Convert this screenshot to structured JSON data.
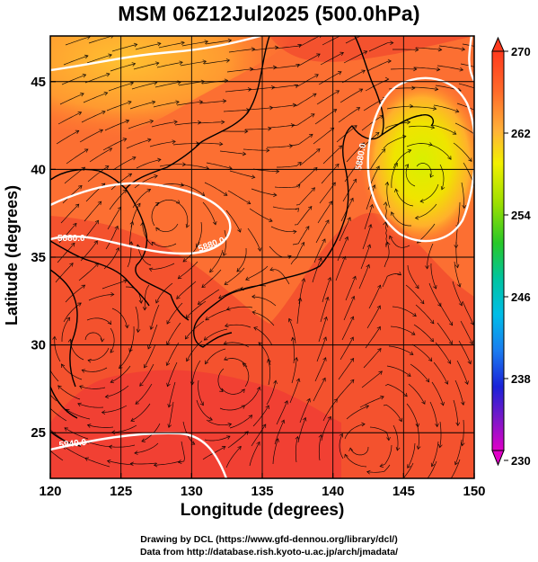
{
  "map": {
    "title": "MSM 06Z12Jul2025 (500.0hPa)",
    "xlabel": "Longitude (degrees)",
    "ylabel": "Latitude  (degrees)",
    "xticks": [
      "120",
      "125",
      "130",
      "135",
      "140",
      "145",
      "150"
    ],
    "yticks": [
      "25",
      "30",
      "35",
      "40",
      "45"
    ],
    "extent": {
      "lon": [
        120,
        150
      ],
      "lat": [
        22.4,
        47.6
      ]
    },
    "contour_labels": [
      "5880.0",
      "5880.0",
      "5940.0",
      "5880.0"
    ],
    "colorbar": {
      "ticks": [
        "270",
        "262",
        "254",
        "246",
        "238",
        "230"
      ],
      "range": [
        230,
        270
      ]
    },
    "credits": [
      "Drawing by DCL (https://www.gfd-dennou.org/library/dcl/)",
      "Data from http://database.rish.kyoto-u.ac.jp/arch/jmadata/"
    ]
  }
}
